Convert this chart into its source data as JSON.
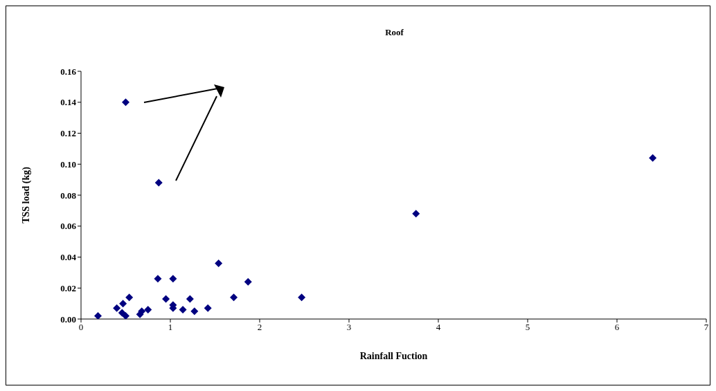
{
  "chart_data": {
    "type": "scatter",
    "title": "Roof",
    "xlabel": "Rainfall Fuction",
    "ylabel": "TSS load (kg)",
    "x": [
      0.19,
      0.4,
      0.47,
      0.46,
      0.5,
      0.54,
      0.5,
      0.66,
      0.68,
      0.75,
      0.86,
      0.87,
      0.95,
      1.03,
      1.03,
      1.03,
      1.14,
      1.22,
      1.27,
      1.42,
      1.54,
      1.71,
      1.87,
      2.47,
      3.75,
      6.4
    ],
    "values": [
      0.002,
      0.007,
      0.01,
      0.004,
      0.002,
      0.014,
      0.14,
      0.003,
      0.005,
      0.006,
      0.026,
      0.088,
      0.013,
      0.026,
      0.009,
      0.007,
      0.006,
      0.013,
      0.005,
      0.007,
      0.036,
      0.014,
      0.024,
      0.014,
      0.068,
      0.104
    ],
    "color": "#000080",
    "marker": "diamond",
    "xlim": [
      0,
      7
    ],
    "xticks": [
      0,
      1,
      2,
      3,
      4,
      5,
      6,
      7
    ],
    "ylim": [
      0,
      0.16
    ],
    "yticks": [
      {
        "value": 0,
        "label": "0.00"
      },
      {
        "value": 0.02,
        "label": "0.02"
      },
      {
        "value": 0.04,
        "label": "0.04"
      },
      {
        "value": 0.06,
        "label": "0.06"
      },
      {
        "value": 0.08,
        "label": "0.08"
      },
      {
        "value": 0.1,
        "label": "0.10"
      },
      {
        "value": 0.12,
        "label": "0.12"
      },
      {
        "value": 0.14,
        "label": "0.14"
      },
      {
        "value": 0.16,
        "label": "0.16"
      }
    ],
    "grid": false
  }
}
